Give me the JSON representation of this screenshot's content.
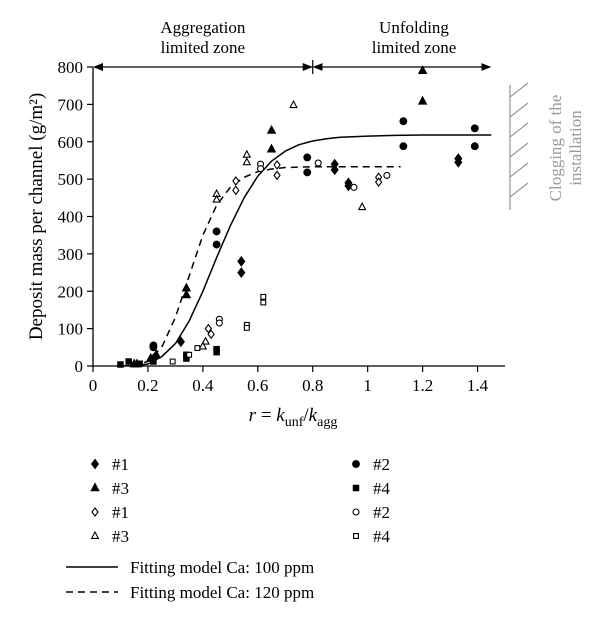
{
  "chart_data": {
    "type": "scatter",
    "xlabel": "r = k_unf/k_agg",
    "ylabel": "Deposit mass per channel (g/m²)",
    "xlim": [
      0,
      1.5
    ],
    "ylim": [
      0,
      800
    ],
    "x_ticks": [
      "0",
      "0.2",
      "0.4",
      "0.6",
      "0.8",
      "1",
      "1.2",
      "1.4"
    ],
    "y_ticks": [
      "0",
      "100",
      "200",
      "300",
      "400",
      "500",
      "600",
      "700",
      "800"
    ],
    "grid": false,
    "legend_position": "below plot",
    "zones": [
      {
        "line1": "Aggregation",
        "line2": "limited zone",
        "x_from": 0,
        "x_to": 0.8
      },
      {
        "line1": "Unfolding",
        "line2": "limited zone",
        "x_from": 0.8,
        "x_to": 1.45
      }
    ],
    "side_annotation": {
      "line1": "Clogging of the",
      "line2": "installation"
    },
    "series": [
      {
        "name": "#1",
        "marker": "diamond",
        "filled": true,
        "points": [
          [
            0.22,
            20
          ],
          [
            0.32,
            65
          ],
          [
            0.54,
            280
          ],
          [
            0.54,
            250
          ],
          [
            0.88,
            540
          ],
          [
            0.88,
            525
          ],
          [
            0.93,
            490
          ],
          [
            0.93,
            482
          ],
          [
            1.33,
            555
          ],
          [
            1.33,
            545
          ]
        ]
      },
      {
        "name": "#2",
        "marker": "circle",
        "filled": true,
        "points": [
          [
            0.22,
            55
          ],
          [
            0.22,
            50
          ],
          [
            0.45,
            360
          ],
          [
            0.45,
            325
          ],
          [
            0.78,
            558
          ],
          [
            0.78,
            518
          ],
          [
            1.13,
            655
          ],
          [
            1.13,
            588
          ],
          [
            1.39,
            636
          ],
          [
            1.39,
            588
          ]
        ]
      },
      {
        "name": "#3",
        "marker": "triangle",
        "filled": true,
        "points": [
          [
            0.15,
            5
          ],
          [
            0.16,
            5
          ],
          [
            0.21,
            20
          ],
          [
            0.23,
            30
          ],
          [
            0.34,
            208
          ],
          [
            0.34,
            190
          ],
          [
            0.65,
            630
          ],
          [
            0.65,
            580
          ],
          [
            1.2,
            790
          ],
          [
            1.2,
            708
          ]
        ]
      },
      {
        "name": "#4",
        "marker": "square",
        "filled": true,
        "points": [
          [
            0.1,
            4
          ],
          [
            0.13,
            12
          ],
          [
            0.17,
            6
          ],
          [
            0.22,
            12
          ],
          [
            0.34,
            30
          ],
          [
            0.34,
            20
          ],
          [
            0.45,
            45
          ],
          [
            0.45,
            37
          ]
        ]
      },
      {
        "name": "#1",
        "marker": "diamond",
        "filled": false,
        "points": [
          [
            0.42,
            100
          ],
          [
            0.43,
            85
          ],
          [
            0.52,
            495
          ],
          [
            0.52,
            470
          ],
          [
            0.67,
            538
          ],
          [
            0.67,
            510
          ],
          [
            1.04,
            505
          ],
          [
            1.04,
            492
          ]
        ]
      },
      {
        "name": "#2",
        "marker": "circle",
        "filled": false,
        "points": [
          [
            0.46,
            125
          ],
          [
            0.46,
            115
          ],
          [
            0.61,
            540
          ],
          [
            0.61,
            528
          ],
          [
            0.82,
            543
          ],
          [
            0.95,
            478
          ],
          [
            1.07,
            510
          ]
        ]
      },
      {
        "name": "#3",
        "marker": "triangle",
        "filled": false,
        "points": [
          [
            0.41,
            65
          ],
          [
            0.4,
            52
          ],
          [
            0.45,
            460
          ],
          [
            0.45,
            445
          ],
          [
            0.56,
            565
          ],
          [
            0.56,
            545
          ],
          [
            0.73,
            698
          ],
          [
            0.98,
            425
          ]
        ]
      },
      {
        "name": "#4",
        "marker": "square",
        "filled": false,
        "points": [
          [
            0.29,
            12
          ],
          [
            0.35,
            30
          ],
          [
            0.38,
            48
          ],
          [
            0.56,
            110
          ],
          [
            0.56,
            102
          ],
          [
            0.62,
            185
          ],
          [
            0.62,
            170
          ]
        ]
      }
    ],
    "curves": [
      {
        "name": "Fitting model Ca: 100 ppm",
        "style": "solid",
        "points": [
          [
            0.1,
            0
          ],
          [
            0.15,
            1
          ],
          [
            0.2,
            5
          ],
          [
            0.25,
            25
          ],
          [
            0.3,
            60
          ],
          [
            0.35,
            120
          ],
          [
            0.4,
            200
          ],
          [
            0.45,
            290
          ],
          [
            0.5,
            375
          ],
          [
            0.55,
            450
          ],
          [
            0.6,
            508
          ],
          [
            0.65,
            548
          ],
          [
            0.7,
            575
          ],
          [
            0.75,
            592
          ],
          [
            0.8,
            602
          ],
          [
            0.85,
            608
          ],
          [
            0.9,
            612
          ],
          [
            1.0,
            615
          ],
          [
            1.1,
            617
          ],
          [
            1.2,
            618
          ],
          [
            1.3,
            618
          ],
          [
            1.45,
            618
          ]
        ]
      },
      {
        "name": "Fitting model Ca: 120 ppm",
        "style": "dashed",
        "points": [
          [
            0.1,
            0
          ],
          [
            0.15,
            2
          ],
          [
            0.2,
            12
          ],
          [
            0.25,
            50
          ],
          [
            0.3,
            130
          ],
          [
            0.35,
            240
          ],
          [
            0.4,
            350
          ],
          [
            0.45,
            430
          ],
          [
            0.5,
            478
          ],
          [
            0.55,
            505
          ],
          [
            0.6,
            520
          ],
          [
            0.65,
            527
          ],
          [
            0.7,
            531
          ],
          [
            0.8,
            533
          ],
          [
            0.9,
            533
          ],
          [
            1.0,
            533
          ],
          [
            1.12,
            533
          ]
        ]
      }
    ]
  },
  "legend": {
    "items": [
      {
        "label": "#1",
        "marker": "diamond",
        "filled": true
      },
      {
        "label": "#2",
        "marker": "circle",
        "filled": true
      },
      {
        "label": "#3",
        "marker": "triangle",
        "filled": true
      },
      {
        "label": "#4",
        "marker": "square",
        "filled": true
      },
      {
        "label": "#1",
        "marker": "diamond",
        "filled": false
      },
      {
        "label": "#2",
        "marker": "circle",
        "filled": false
      },
      {
        "label": "#3",
        "marker": "triangle",
        "filled": false
      },
      {
        "label": "#4",
        "marker": "square",
        "filled": false
      }
    ],
    "lines": [
      {
        "label": "Fitting model Ca: 100 ppm",
        "style": "solid"
      },
      {
        "label": "Fitting model Ca: 120 ppm",
        "style": "dashed"
      }
    ]
  }
}
